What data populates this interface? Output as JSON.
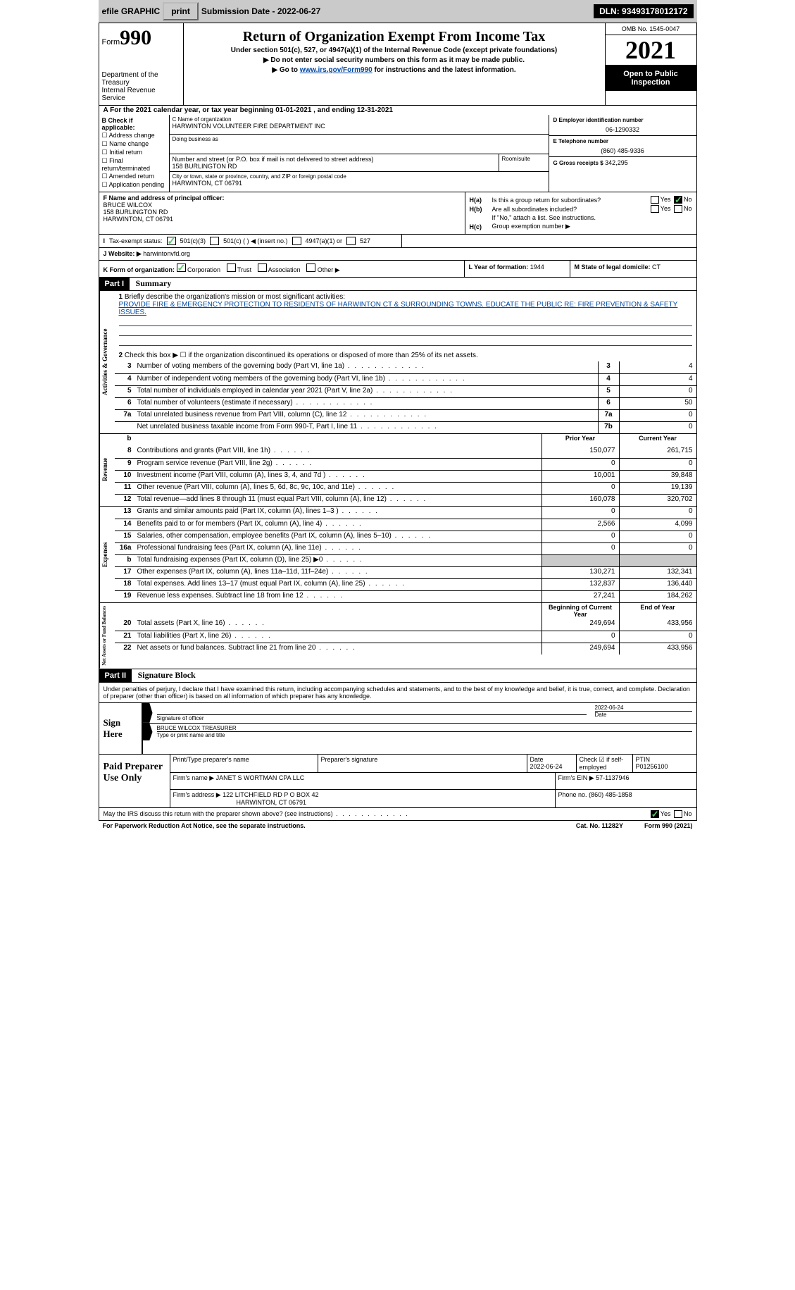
{
  "topbar": {
    "efile_label": "efile GRAPHIC",
    "print_btn": "print",
    "submission_label": "Submission Date - 2022-06-27",
    "dln_label": "DLN: 93493178012172"
  },
  "header": {
    "form_word": "Form",
    "form_num": "990",
    "dept": "Department of the Treasury",
    "irs": "Internal Revenue Service",
    "title": "Return of Organization Exempt From Income Tax",
    "sub1": "Under section 501(c), 527, or 4947(a)(1) of the Internal Revenue Code (except private foundations)",
    "sub2": "▶ Do not enter social security numbers on this form as it may be made public.",
    "sub3_pre": "▶ Go to ",
    "sub3_link": "www.irs.gov/Form990",
    "sub3_post": " for instructions and the latest information.",
    "omb": "OMB No. 1545-0047",
    "year": "2021",
    "open_pub": "Open to Public Inspection"
  },
  "row_a": "For the 2021 calendar year, or tax year beginning 01-01-2021   , and ending 12-31-2021",
  "col_b": {
    "hdr": "B Check if applicable:",
    "c1": "Address change",
    "c2": "Name change",
    "c3": "Initial return",
    "c4": "Final return/terminated",
    "c5": "Amended return",
    "c6": "Application pending"
  },
  "col_c": {
    "name_lbl": "C Name of organization",
    "name": "HARWINTON VOLUNTEER FIRE DEPARTMENT INC",
    "dba_lbl": "Doing business as",
    "addr_lbl": "Number and street (or P.O. box if mail is not delivered to street address)",
    "addr": "158 BURLINGTON RD",
    "room_lbl": "Room/suite",
    "city_lbl": "City or town, state or province, country, and ZIP or foreign postal code",
    "city": "HARWINTON, CT  06791"
  },
  "col_d": {
    "d_lbl": "D Employer identification number",
    "d_val": "06-1290332",
    "e_lbl": "E Telephone number",
    "e_val": "(860) 485-9336",
    "g_lbl": "G Gross receipts $",
    "g_val": "342,295"
  },
  "col_f": {
    "lbl": "F Name and address of principal officer:",
    "name": "BRUCE WILCOX",
    "addr1": "158 BURLINGTON RD",
    "addr2": "HARWINTON, CT  06791"
  },
  "col_h": {
    "ha_k": "H(a)",
    "ha_t": "Is this a group return for subordinates?",
    "hb_k": "H(b)",
    "hb_t": "Are all subordinates included?",
    "hb_note": "If \"No,\" attach a list. See instructions.",
    "hc_k": "H(c)",
    "hc_t": "Group exemption number ▶",
    "yes": "Yes",
    "no": "No"
  },
  "row_i": {
    "lbl": "Tax-exempt status:",
    "o1": "501(c)(3)",
    "o2": "501(c) (  ) ◀ (insert no.)",
    "o3": "4947(a)(1) or",
    "o4": "527"
  },
  "row_j": {
    "lbl": "Website: ▶",
    "val": "harwintonvfd.org"
  },
  "row_k": {
    "k_lbl": "K Form of organization:",
    "k_o1": "Corporation",
    "k_o2": "Trust",
    "k_o3": "Association",
    "k_o4": "Other ▶",
    "l_lbl": "L Year of formation:",
    "l_val": "1944",
    "m_lbl": "M State of legal domicile:",
    "m_val": "CT"
  },
  "part1": {
    "hdr": "Part I",
    "title": "Summary",
    "l1_lbl": "Briefly describe the organization's mission or most significant activities:",
    "l1_mission": "PROVIDE FIRE & EMERGENCY PROTECTION TO RESIDENTS OF HARWINTON CT & SURROUNDING TOWNS. EDUCATE THE PUBLIC RE: FIRE PREVENTION & SAFETY ISSUES.",
    "l2": "Check this box ▶ ☐ if the organization discontinued its operations or disposed of more than 25% of its net assets.",
    "sidebar1": "Activities & Governance",
    "sidebar2": "Revenue",
    "sidebar3": "Expenses",
    "sidebar4": "Net Assets or Fund Balances",
    "lines_gov": [
      {
        "n": "3",
        "d": "Number of voting members of the governing body (Part VI, line 1a)",
        "box": "3",
        "v": "4"
      },
      {
        "n": "4",
        "d": "Number of independent voting members of the governing body (Part VI, line 1b)",
        "box": "4",
        "v": "4"
      },
      {
        "n": "5",
        "d": "Total number of individuals employed in calendar year 2021 (Part V, line 2a)",
        "box": "5",
        "v": "0"
      },
      {
        "n": "6",
        "d": "Total number of volunteers (estimate if necessary)",
        "box": "6",
        "v": "50"
      },
      {
        "n": "7a",
        "d": "Total unrelated business revenue from Part VIII, column (C), line 12",
        "box": "7a",
        "v": "0"
      },
      {
        "n": "",
        "d": "Net unrelated business taxable income from Form 990-T, Part I, line 11",
        "box": "7b",
        "v": "0"
      }
    ],
    "hdr_prior": "Prior Year",
    "hdr_curr": "Current Year",
    "lines_rev": [
      {
        "n": "8",
        "d": "Contributions and grants (Part VIII, line 1h)",
        "p": "150,077",
        "c": "261,715"
      },
      {
        "n": "9",
        "d": "Program service revenue (Part VIII, line 2g)",
        "p": "0",
        "c": "0"
      },
      {
        "n": "10",
        "d": "Investment income (Part VIII, column (A), lines 3, 4, and 7d )",
        "p": "10,001",
        "c": "39,848"
      },
      {
        "n": "11",
        "d": "Other revenue (Part VIII, column (A), lines 5, 6d, 8c, 9c, 10c, and 11e)",
        "p": "0",
        "c": "19,139"
      },
      {
        "n": "12",
        "d": "Total revenue—add lines 8 through 11 (must equal Part VIII, column (A), line 12)",
        "p": "160,078",
        "c": "320,702"
      }
    ],
    "lines_exp": [
      {
        "n": "13",
        "d": "Grants and similar amounts paid (Part IX, column (A), lines 1–3 )",
        "p": "0",
        "c": "0"
      },
      {
        "n": "14",
        "d": "Benefits paid to or for members (Part IX, column (A), line 4)",
        "p": "2,566",
        "c": "4,099"
      },
      {
        "n": "15",
        "d": "Salaries, other compensation, employee benefits (Part IX, column (A), lines 5–10)",
        "p": "0",
        "c": "0"
      },
      {
        "n": "16a",
        "d": "Professional fundraising fees (Part IX, column (A), line 11e)",
        "p": "0",
        "c": "0"
      },
      {
        "n": "b",
        "d": "Total fundraising expenses (Part IX, column (D), line 25) ▶0",
        "p": "",
        "c": "",
        "gray": true
      },
      {
        "n": "17",
        "d": "Other expenses (Part IX, column (A), lines 11a–11d, 11f–24e)",
        "p": "130,271",
        "c": "132,341"
      },
      {
        "n": "18",
        "d": "Total expenses. Add lines 13–17 (must equal Part IX, column (A), line 25)",
        "p": "132,837",
        "c": "136,440"
      },
      {
        "n": "19",
        "d": "Revenue less expenses. Subtract line 18 from line 12",
        "p": "27,241",
        "c": "184,262"
      }
    ],
    "hdr_begin": "Beginning of Current Year",
    "hdr_end": "End of Year",
    "lines_net": [
      {
        "n": "20",
        "d": "Total assets (Part X, line 16)",
        "p": "249,694",
        "c": "433,956"
      },
      {
        "n": "21",
        "d": "Total liabilities (Part X, line 26)",
        "p": "0",
        "c": "0"
      },
      {
        "n": "22",
        "d": "Net assets or fund balances. Subtract line 21 from line 20",
        "p": "249,694",
        "c": "433,956"
      }
    ]
  },
  "part2": {
    "hdr": "Part II",
    "title": "Signature Block",
    "decl": "Under penalties of perjury, I declare that I have examined this return, including accompanying schedules and statements, and to the best of my knowledge and belief, it is true, correct, and complete. Declaration of preparer (other than officer) is based on all information of which preparer has any knowledge.",
    "sign_here": "Sign Here",
    "sig_officer": "Signature of officer",
    "sig_date": "2022-06-24",
    "sig_name": "BRUCE WILCOX  TREASURER",
    "sig_name_lbl": "Type or print name and title",
    "date_lbl": "Date",
    "paid_prep": "Paid Preparer Use Only",
    "prep_name_lbl": "Print/Type preparer's name",
    "prep_sig_lbl": "Preparer's signature",
    "prep_date_lbl": "Date",
    "prep_date": "2022-06-24",
    "prep_check_lbl": "Check ☑ if self-employed",
    "ptin_lbl": "PTIN",
    "ptin": "P01256100",
    "firm_name_lbl": "Firm's name    ▶",
    "firm_name": "JANET S WORTMAN CPA LLC",
    "firm_ein_lbl": "Firm's EIN ▶",
    "firm_ein": "57-1137946",
    "firm_addr_lbl": "Firm's address ▶",
    "firm_addr1": "122 LITCHFIELD RD P O BOX 42",
    "firm_addr2": "HARWINTON, CT  06791",
    "phone_lbl": "Phone no.",
    "phone": "(860) 485-1858",
    "discuss": "May the IRS discuss this return with the preparer shown above? (see instructions)",
    "yes": "Yes",
    "no": "No"
  },
  "footer": {
    "pra": "For Paperwork Reduction Act Notice, see the separate instructions.",
    "cat": "Cat. No. 11282Y",
    "form": "Form 990 (2021)"
  }
}
